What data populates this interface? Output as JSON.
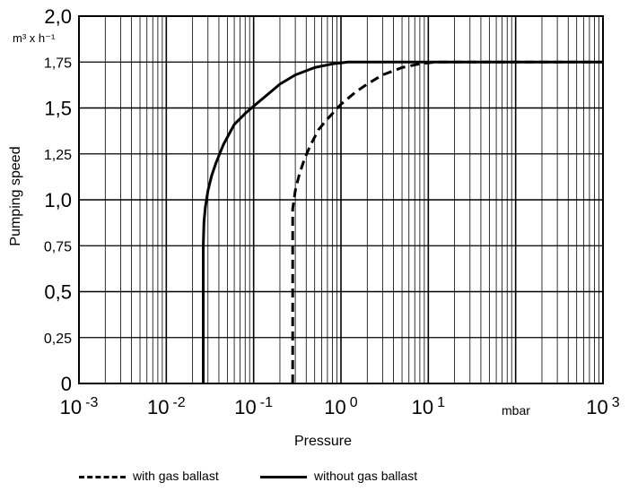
{
  "chart_data": {
    "type": "line",
    "xlabel": "Pressure",
    "x_unit": "mbar",
    "ylabel": "Pumping speed",
    "y_unit": "m³ x h⁻¹",
    "x_scale": "log",
    "xlim": [
      0.001,
      1000
    ],
    "ylim": [
      0,
      2.0
    ],
    "grid": true,
    "y_tick_labels": [
      "0",
      "0,25",
      "0,5",
      "0,75",
      "1,0",
      "1,25",
      "1,5",
      "1,75",
      "2,0"
    ],
    "y_ticks": [
      0,
      0.25,
      0.5,
      0.75,
      1.0,
      1.25,
      1.5,
      1.75,
      2.0
    ],
    "x_tick_labels": [
      {
        "base": "10",
        "exp": "-3"
      },
      {
        "base": "10",
        "exp": "-2"
      },
      {
        "base": "10",
        "exp": "-1"
      },
      {
        "base": "10",
        "exp": "0"
      },
      {
        "base": "10",
        "exp": "1"
      },
      {
        "base": "10",
        "exp": "3"
      }
    ],
    "x_ticks": [
      0.001,
      0.01,
      0.1,
      1,
      10,
      1000
    ],
    "legend_position": "bottom",
    "series": [
      {
        "name": "without gas ballast",
        "style": "solid",
        "x": [
          0.0265,
          0.0265,
          0.027,
          0.028,
          0.03,
          0.033,
          0.037,
          0.045,
          0.06,
          0.08,
          0.1,
          0.15,
          0.2,
          0.3,
          0.5,
          0.8,
          1.2,
          2,
          5,
          10,
          100,
          1000
        ],
        "y": [
          0,
          0.75,
          0.88,
          0.96,
          1.05,
          1.13,
          1.2,
          1.3,
          1.41,
          1.47,
          1.51,
          1.58,
          1.63,
          1.68,
          1.72,
          1.74,
          1.75,
          1.75,
          1.75,
          1.75,
          1.75,
          1.75
        ]
      },
      {
        "name": "with gas ballast",
        "style": "dashed",
        "x": [
          0.28,
          0.28,
          0.29,
          0.3,
          0.33,
          0.38,
          0.45,
          0.55,
          0.7,
          1,
          1.5,
          2,
          3,
          5,
          8,
          12,
          20,
          100,
          1000
        ],
        "y": [
          0,
          0.95,
          1.0,
          1.05,
          1.13,
          1.22,
          1.3,
          1.38,
          1.44,
          1.52,
          1.59,
          1.63,
          1.68,
          1.72,
          1.74,
          1.75,
          1.75,
          1.75,
          1.75
        ]
      }
    ],
    "axis_color": "#000000",
    "grid_color": "#000000"
  },
  "legend": {
    "with_label": "with gas ballast",
    "without_label": "without gas ballast"
  }
}
